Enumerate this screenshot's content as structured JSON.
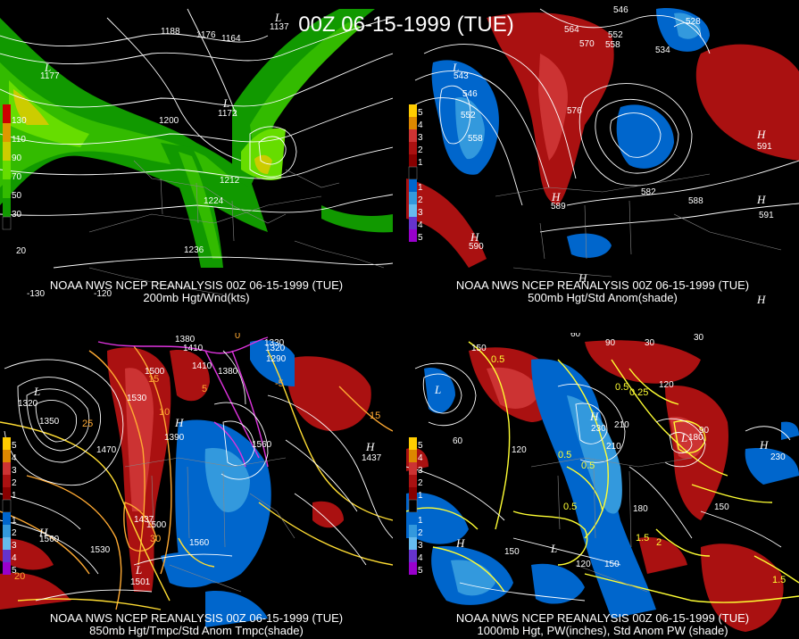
{
  "title": "00Z 06-15-1999 (TUE)",
  "panels": [
    {
      "caption_line1": "NOAA NWS NCEP REANALYSIS 00Z 06-15-1999 (TUE)",
      "caption_line2": "200mb Hgt/Wnd(kts)",
      "legend": [
        "130",
        "110",
        "90",
        "70",
        "50",
        "30"
      ],
      "legend_colors": [
        "#cc0000",
        "#dd9900",
        "#cccc00",
        "#66dd00",
        "#33bb00",
        "#119900"
      ],
      "contour_labels": [
        "1188",
        "1176",
        "1164",
        "1200",
        "1172",
        "1212",
        "1224",
        "1236",
        "1177",
        "1137"
      ],
      "lat_labels": [
        "20",
        "-130",
        "-120"
      ]
    },
    {
      "caption_line1": "NOAA NWS NCEP REANALYSIS 00Z 06-15-1999 (TUE)",
      "caption_line2": "500mb Hgt/Std Anom(shade)",
      "legend": [
        "5",
        "4",
        "3",
        "2",
        "1",
        "1",
        "2",
        "3",
        "4",
        "5"
      ],
      "legend_colors": [
        "#ffcc00",
        "#dd8800",
        "#cc3333",
        "#aa1111",
        "#880000",
        "#0066cc",
        "#3399dd",
        "#66bbee",
        "#6633cc",
        "#9900cc"
      ],
      "contour_labels": [
        "546",
        "564",
        "552",
        "570",
        "558",
        "534",
        "528",
        "543",
        "546",
        "552",
        "558",
        "576",
        "582",
        "588",
        "591",
        "590",
        "589",
        "591"
      ]
    },
    {
      "caption_line1": "NOAA NWS NCEP REANALYSIS 00Z 06-15-1999 (TUE)",
      "caption_line2": "850mb Hgt/Tmpc/Std Anom Tmpc(shade)",
      "legend": [
        "5",
        "4",
        "3",
        "2",
        "1",
        "1",
        "2",
        "3",
        "4",
        "5"
      ],
      "contour_labels": [
        "1380",
        "1410",
        "1350",
        "1320",
        "1470",
        "1500",
        "1530",
        "1560",
        "1330",
        "1290",
        "1320",
        "1380",
        "1410",
        "1390",
        "1560",
        "1530",
        "1500",
        "1437",
        "1501",
        "1560",
        "1437"
      ],
      "temp_labels": [
        "15",
        "10",
        "5",
        "0",
        "-5",
        "20",
        "25",
        "30",
        "15"
      ]
    },
    {
      "caption_line1": "NOAA NWS NCEP REANALYSIS 00Z 06-15-1999 (TUE)",
      "caption_line2": "1000mb Hgt, PW(inches), Std Anom PW (shade)",
      "legend": [
        "5",
        "4",
        "3",
        "2",
        "1",
        "1",
        "2",
        "3",
        "4",
        "5"
      ],
      "contour_labels": [
        "150",
        "60",
        "90",
        "30",
        "60",
        "30",
        "120",
        "120",
        "210",
        "210",
        "180",
        "150",
        "120",
        "150",
        "180",
        "150",
        "90",
        "230",
        "230"
      ],
      "pw_labels": [
        "0.5",
        "0.5",
        "0.25",
        "0.5",
        "0.5",
        "0.5",
        "1.5",
        "2",
        "1.5"
      ]
    }
  ]
}
